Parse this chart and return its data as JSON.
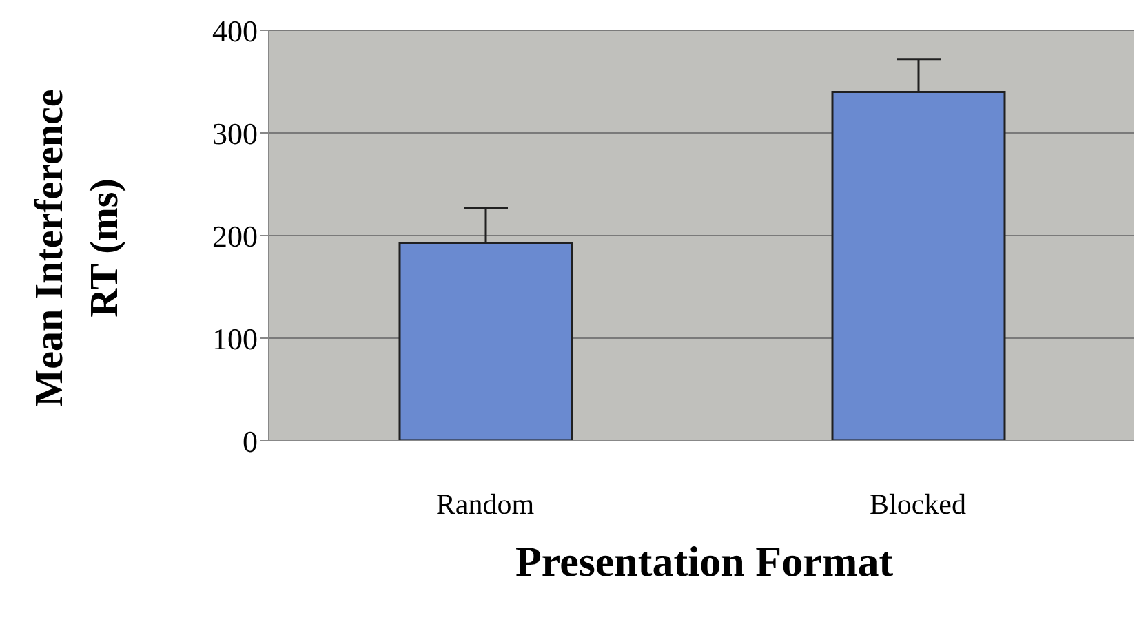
{
  "chart_data": {
    "type": "bar",
    "xlabel": "Presentation Format",
    "ylabel": "Mean Interference RT (ms)",
    "categories": [
      "Random",
      "Blocked"
    ],
    "values": [
      193,
      340
    ],
    "errors": [
      [
        193,
        227
      ],
      [
        340,
        372
      ]
    ],
    "color": "#6a8ad0",
    "ylim": [
      0,
      400
    ],
    "yticks": [
      0,
      100,
      200,
      300,
      400
    ],
    "grid": "y"
  }
}
